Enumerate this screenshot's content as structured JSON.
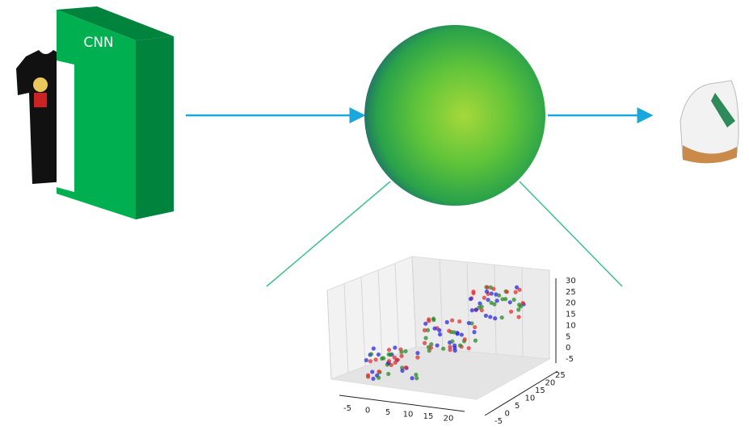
{
  "nodes": [
    {
      "label": "CNN"
    }
  ],
  "scatter_axes": {
    "x_ticks": [
      -5,
      0,
      5,
      10,
      15,
      20
    ],
    "y_ticks": [
      -5,
      0,
      5,
      10,
      15,
      20,
      25
    ],
    "z_ticks": [
      -5,
      0,
      5,
      10,
      15,
      20,
      25,
      30
    ]
  }
}
